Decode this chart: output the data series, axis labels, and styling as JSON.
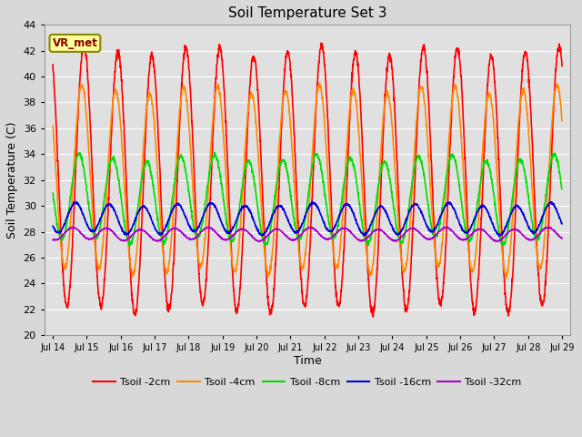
{
  "title": "Soil Temperature Set 3",
  "xlabel": "Time",
  "ylabel": "Soil Temperature (C)",
  "ylim": [
    20,
    44
  ],
  "yticks": [
    20,
    22,
    24,
    26,
    28,
    30,
    32,
    34,
    36,
    38,
    40,
    42,
    44
  ],
  "x_start_day": 13.75,
  "x_end_day": 29.25,
  "xtick_labels": [
    "Jul 14",
    "Jul 15",
    "Jul 16",
    "Jul 17",
    "Jul 18",
    "Jul 19",
    "Jul 20",
    "Jul 21",
    "Jul 22",
    "Jul 23",
    "Jul 24",
    "Jul 25",
    "Jul 26",
    "Jul 27",
    "Jul 28",
    "Jul 29"
  ],
  "xtick_positions": [
    14,
    15,
    16,
    17,
    18,
    19,
    20,
    21,
    22,
    23,
    24,
    25,
    26,
    27,
    28,
    29
  ],
  "bg_color": "#d8d8d8",
  "plot_bg_color": "#e0e0e0",
  "grid_color": "#ffffff",
  "colors": {
    "Tsoil -2cm": "#ff0000",
    "Tsoil -4cm": "#ff8800",
    "Tsoil -8cm": "#00dd00",
    "Tsoil -16cm": "#0000dd",
    "Tsoil -32cm": "#aa00cc"
  },
  "lw": 1.2,
  "annotation_text": "VR_met",
  "annotation_color": "#880000",
  "annotation_bg": "#ffff99",
  "annotation_edge": "#888800"
}
